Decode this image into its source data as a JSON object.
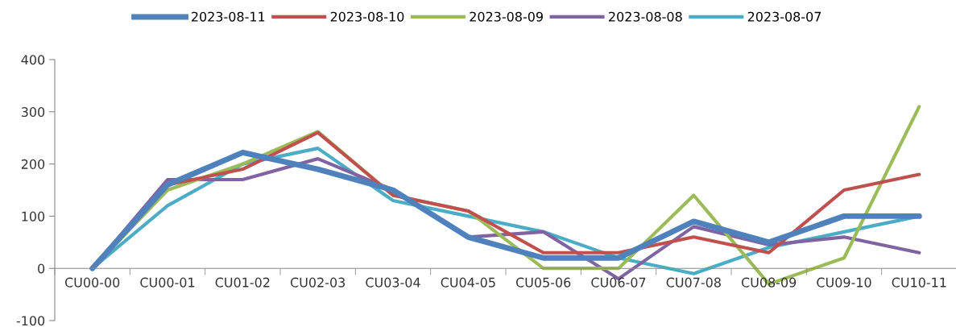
{
  "chart_data": {
    "type": "line",
    "categories": [
      "CU00-00",
      "CU00-01",
      "CU01-02",
      "CU02-03",
      "CU03-04",
      "CU04-05",
      "CU05-06",
      "CU06-07",
      "CU07-08",
      "CU08-09",
      "CU09-10",
      "CU10-11"
    ],
    "series": [
      {
        "name": "2023-08-11",
        "color": "#4f81bd",
        "values": [
          0,
          160,
          222,
          190,
          150,
          60,
          20,
          20,
          90,
          50,
          100,
          100
        ]
      },
      {
        "name": "2023-08-10",
        "color": "#c0504d",
        "values": [
          0,
          160,
          190,
          260,
          140,
          110,
          30,
          30,
          60,
          30,
          150,
          180
        ]
      },
      {
        "name": "2023-08-09",
        "color": "#9bbb59",
        "values": [
          0,
          150,
          200,
          262,
          140,
          110,
          0,
          0,
          140,
          -30,
          20,
          310
        ]
      },
      {
        "name": "2023-08-08",
        "color": "#8064a2",
        "values": [
          0,
          170,
          170,
          210,
          150,
          60,
          70,
          -20,
          80,
          45,
          60,
          30
        ]
      },
      {
        "name": "2023-08-07",
        "color": "#4bacc6",
        "values": [
          0,
          120,
          200,
          230,
          130,
          100,
          70,
          20,
          -10,
          40,
          70,
          100
        ]
      }
    ],
    "ylim": [
      -100,
      400
    ],
    "yticks": [
      -100,
      0,
      100,
      200,
      300,
      400
    ],
    "grid": false,
    "legend": "top",
    "marker": "none",
    "line_style": "solid"
  }
}
